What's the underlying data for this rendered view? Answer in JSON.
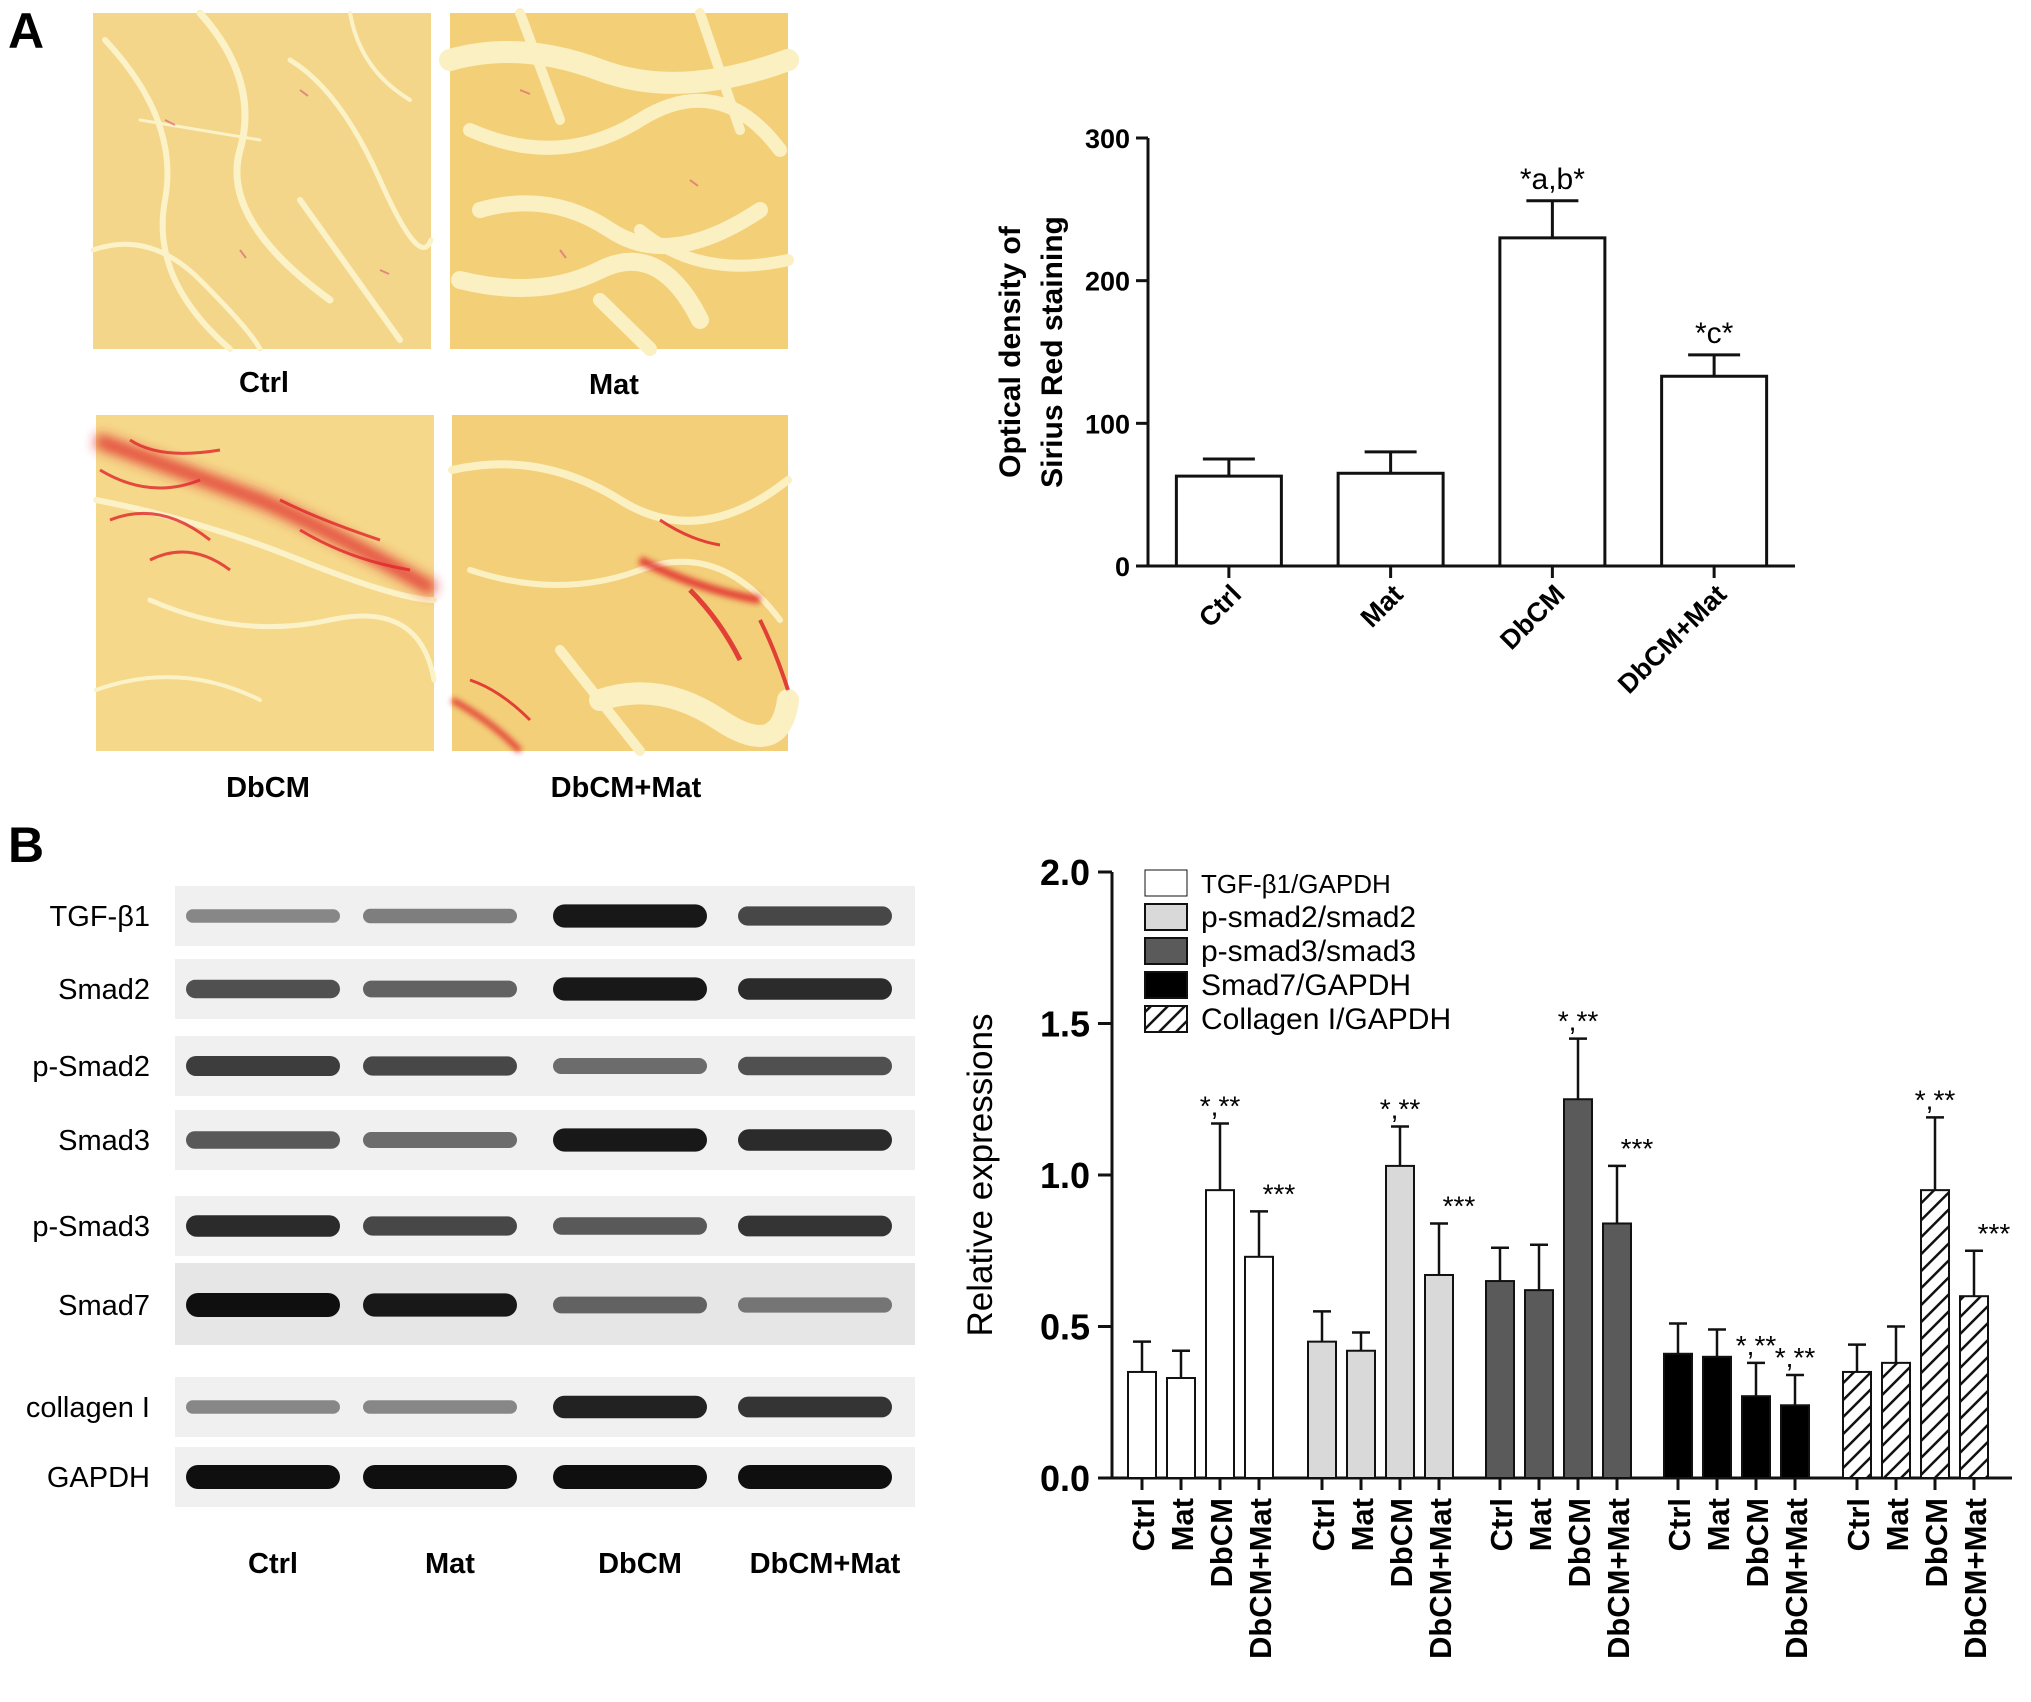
{
  "figure": {
    "panel_a_letter": "A",
    "panel_b_letter": "B",
    "histology": {
      "captions": [
        "Ctrl",
        "Mat",
        "DbCM",
        "DbCM+Mat"
      ],
      "stain_colors": {
        "tissue": "#f4d37e",
        "space": "#fbf2c8",
        "fibrosis": "#e0262c"
      }
    },
    "western_blot": {
      "bands": [
        "TGF-β1",
        "Smad2",
        "p-Smad2",
        "Smad3",
        "p-Smad3",
        "Smad7",
        "collagen I",
        "GAPDH"
      ],
      "lanes": [
        "Ctrl",
        "Mat",
        "DbCM",
        "DbCM+Mat"
      ],
      "band_intensity": [
        [
          0.35,
          0.4,
          0.95,
          0.7
        ],
        [
          0.65,
          0.55,
          0.95,
          0.85
        ],
        [
          0.75,
          0.7,
          0.5,
          0.65
        ],
        [
          0.6,
          0.5,
          0.95,
          0.85
        ],
        [
          0.85,
          0.7,
          0.6,
          0.8
        ],
        [
          1.0,
          0.95,
          0.55,
          0.45
        ],
        [
          0.35,
          0.35,
          0.9,
          0.8
        ],
        [
          1.0,
          1.0,
          1.0,
          1.0
        ]
      ]
    }
  },
  "chart_data": [
    {
      "type": "bar",
      "categories": [
        "Ctrl",
        "Mat",
        "DbCM",
        "DbCM+Mat"
      ],
      "values": [
        63,
        65,
        230,
        133
      ],
      "errors": [
        12,
        15,
        26,
        15
      ],
      "annotations": [
        "",
        "",
        "*a,b*",
        "*c*"
      ],
      "ylabel": "Optical density of Sirius Red staining",
      "ylabel_lines": [
        "Optical density of",
        "Sirius Red staining"
      ],
      "yticks": [
        0,
        100,
        200,
        300
      ],
      "ylim": [
        0,
        300
      ],
      "bar_color": "#ffffff"
    },
    {
      "type": "bar",
      "categories": [
        "Ctrl",
        "Mat",
        "DbCM",
        "DbCM+Mat"
      ],
      "series": [
        {
          "name": "TGF-β1/GAPDH",
          "values": [
            0.35,
            0.33,
            0.95,
            0.73
          ],
          "errors": [
            0.1,
            0.09,
            0.22,
            0.15
          ],
          "annotations": [
            "",
            "",
            "*,**",
            "***"
          ],
          "fill": "#ffffff"
        },
        {
          "name": "p-smad2/smad2",
          "values": [
            0.45,
            0.42,
            1.03,
            0.67
          ],
          "errors": [
            0.1,
            0.06,
            0.13,
            0.17
          ],
          "annotations": [
            "",
            "",
            "*,**",
            "***"
          ],
          "fill": "#d9d9d9"
        },
        {
          "name": "p-smad3/smad3",
          "values": [
            0.65,
            0.62,
            1.25,
            0.84
          ],
          "errors": [
            0.11,
            0.15,
            0.2,
            0.19
          ],
          "annotations": [
            "",
            "",
            "*,**",
            "***"
          ],
          "fill": "#5a5a5a"
        },
        {
          "name": "Smad7/GAPDH",
          "values": [
            0.41,
            0.4,
            0.27,
            0.24
          ],
          "errors": [
            0.1,
            0.09,
            0.11,
            0.1
          ],
          "annotations": [
            "",
            "",
            "*,**",
            "*,**"
          ],
          "fill": "#000000"
        },
        {
          "name": "Collagen I/GAPDH",
          "values": [
            0.35,
            0.38,
            0.95,
            0.6
          ],
          "errors": [
            0.09,
            0.12,
            0.24,
            0.15
          ],
          "annotations": [
            "",
            "",
            "*,**",
            "***"
          ],
          "fill": "hatch"
        }
      ],
      "ylabel": "Relative expressions",
      "yticks": [
        0.0,
        0.5,
        1.0,
        1.5,
        2.0
      ],
      "ytick_labels": [
        "0.0",
        "0.5",
        "1.0",
        "1.5",
        "2.0"
      ],
      "ylim": [
        0,
        2.0
      ],
      "legend": "top-left"
    }
  ]
}
